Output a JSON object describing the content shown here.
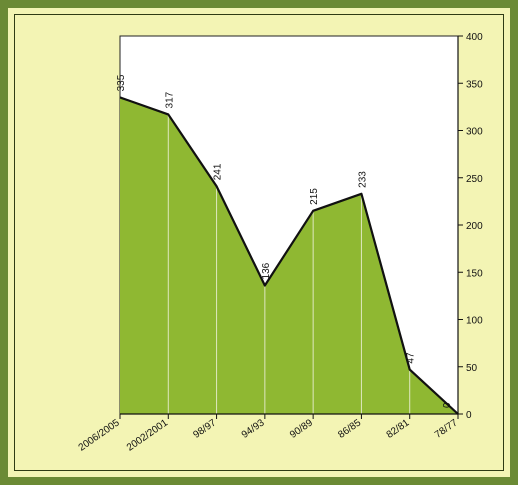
{
  "chart_data": {
    "type": "area",
    "categories": [
      "2006/2005",
      "2002/2001",
      "98/97",
      "94/93",
      "90/89",
      "86/85",
      "82/81",
      "78/77"
    ],
    "values": [
      335,
      317,
      241,
      136,
      215,
      233,
      47,
      0
    ],
    "title": "",
    "xlabel": "",
    "ylabel": "",
    "ylim": [
      0,
      400
    ],
    "yticks": [
      0,
      50,
      100,
      150,
      200,
      250,
      300,
      350,
      400
    ],
    "y_axis_side": "right",
    "grid": false,
    "colors": {
      "fill": "#8fb832",
      "line": "#111111",
      "separator": "#dfe8c0",
      "background": "#f3f4b4",
      "plot_background": "#ffffff",
      "frame": "#6b8a35"
    }
  }
}
